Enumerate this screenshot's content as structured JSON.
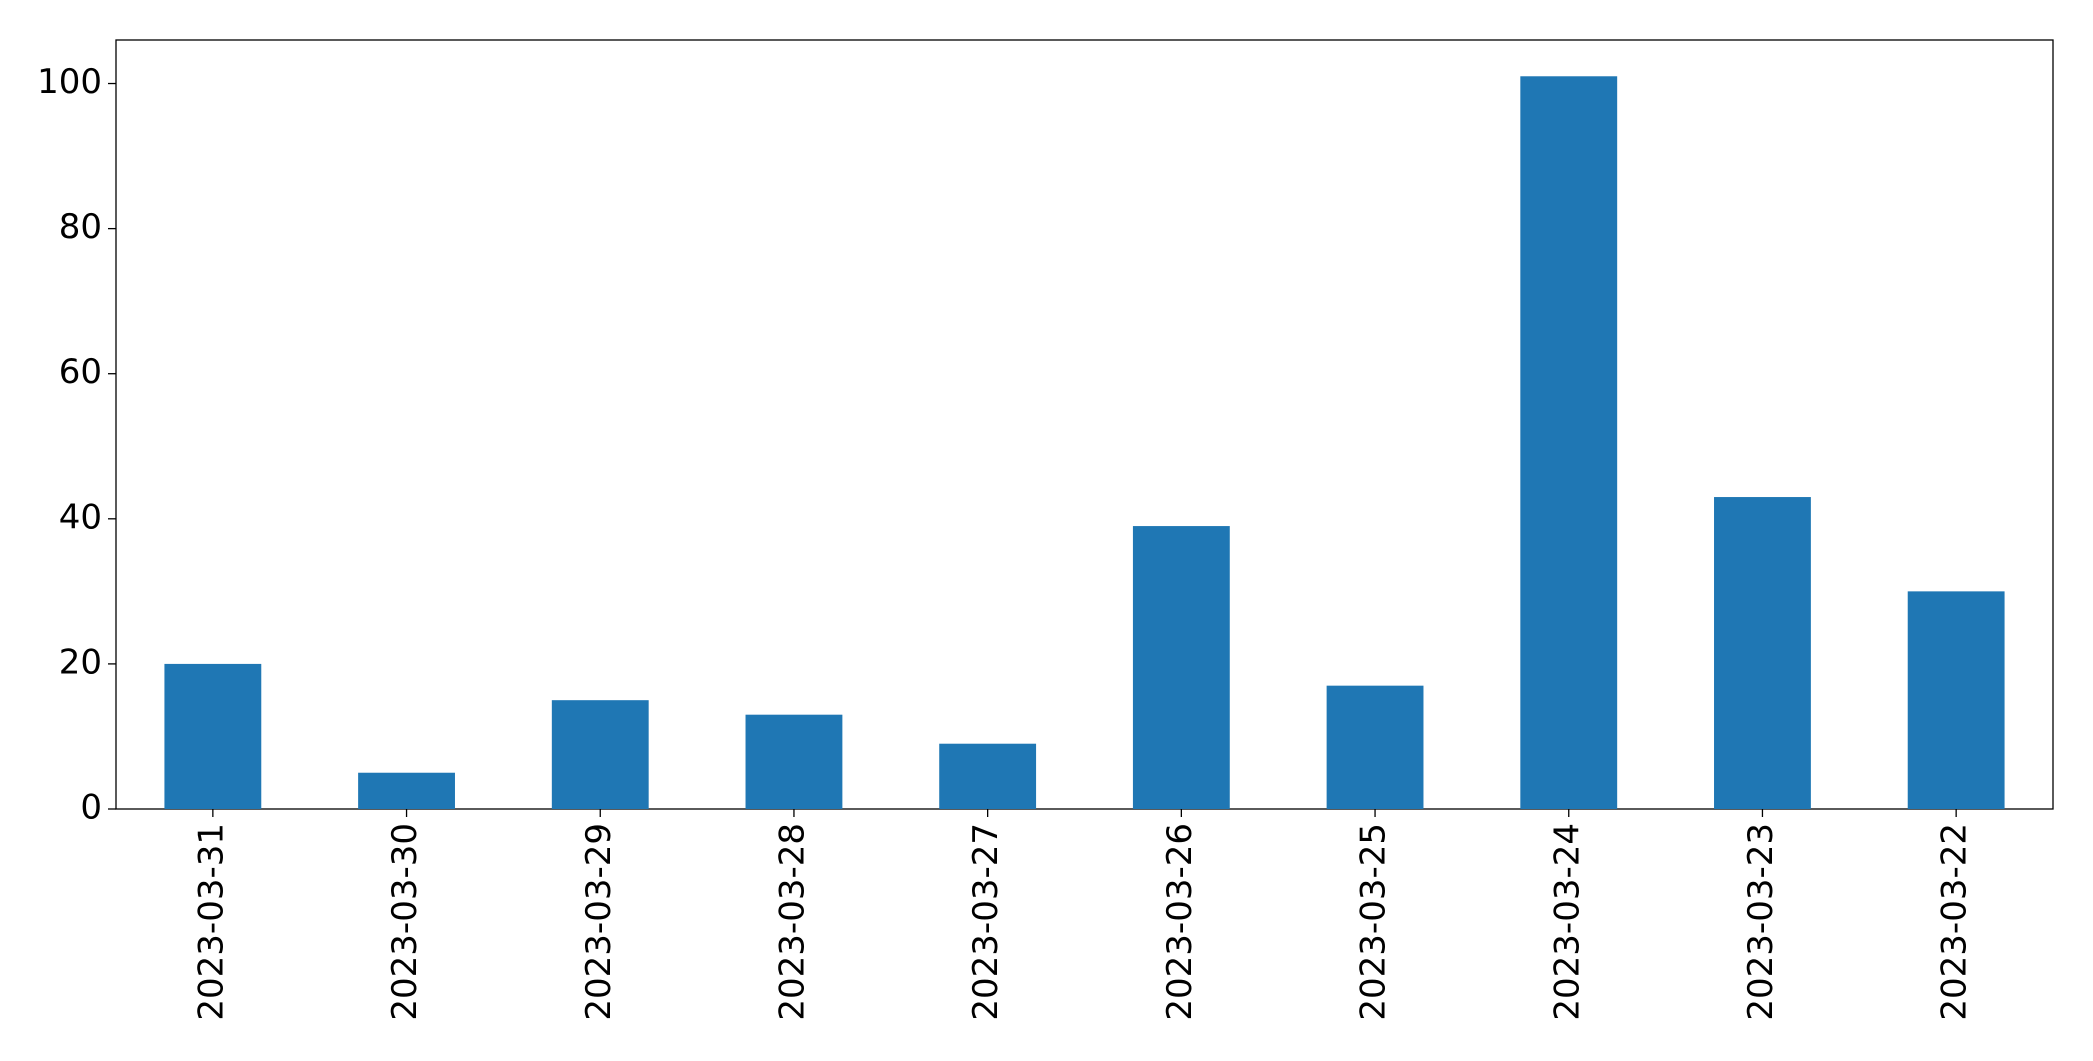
{
  "chart_data": {
    "type": "bar",
    "categories": [
      "2023-03-31",
      "2023-03-30",
      "2023-03-29",
      "2023-03-28",
      "2023-03-27",
      "2023-03-26",
      "2023-03-25",
      "2023-03-24",
      "2023-03-23",
      "2023-03-22"
    ],
    "values": [
      20,
      5,
      15,
      13,
      9,
      39,
      17,
      101,
      43,
      30
    ],
    "color": "#1f77b4",
    "ylim": [
      0,
      106
    ],
    "yticks": [
      0,
      20,
      40,
      60,
      80,
      100
    ],
    "grid": false
  }
}
